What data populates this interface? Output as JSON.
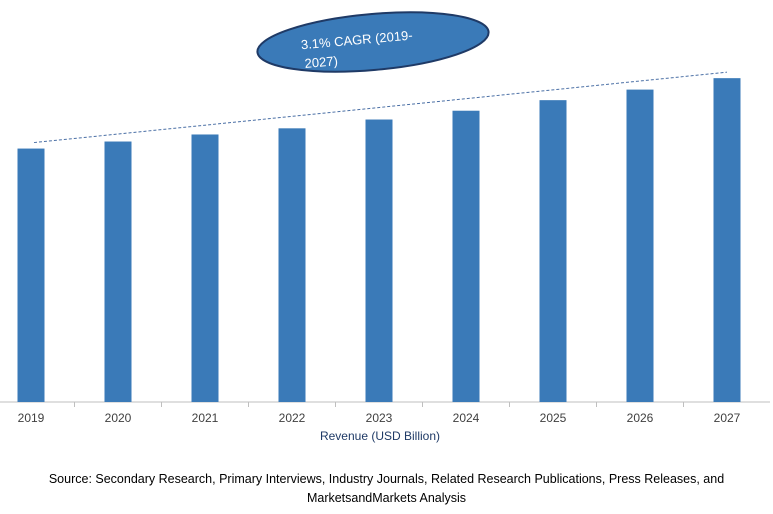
{
  "chart_data": {
    "type": "bar",
    "title": "",
    "xlabel": "Revenue (USD Billion)",
    "ylabel": "",
    "categories": [
      "2019",
      "2020",
      "2021",
      "2022",
      "2023",
      "2024",
      "2025",
      "2026",
      "2027"
    ],
    "values": [
      288,
      296,
      304,
      311,
      321,
      331,
      343,
      355,
      368
    ],
    "ylim": [
      0,
      400
    ],
    "grid": false,
    "legend": "none",
    "trendline": true,
    "annotation": "3.1% CAGR (2019-2027)",
    "colors": {
      "bar": "#3A7AB8",
      "trendline": "#4A6FA5",
      "annotation_fill": "#3A7AB8",
      "annotation_border": "#1F3A66",
      "annotation_text": "#FFFFFF"
    }
  },
  "source": {
    "line1": "Source: Secondary Research, Primary Interviews, Industry Journals, Related Research Publications, Press Releases, and",
    "line2": "MarketsandMarkets Analysis"
  }
}
